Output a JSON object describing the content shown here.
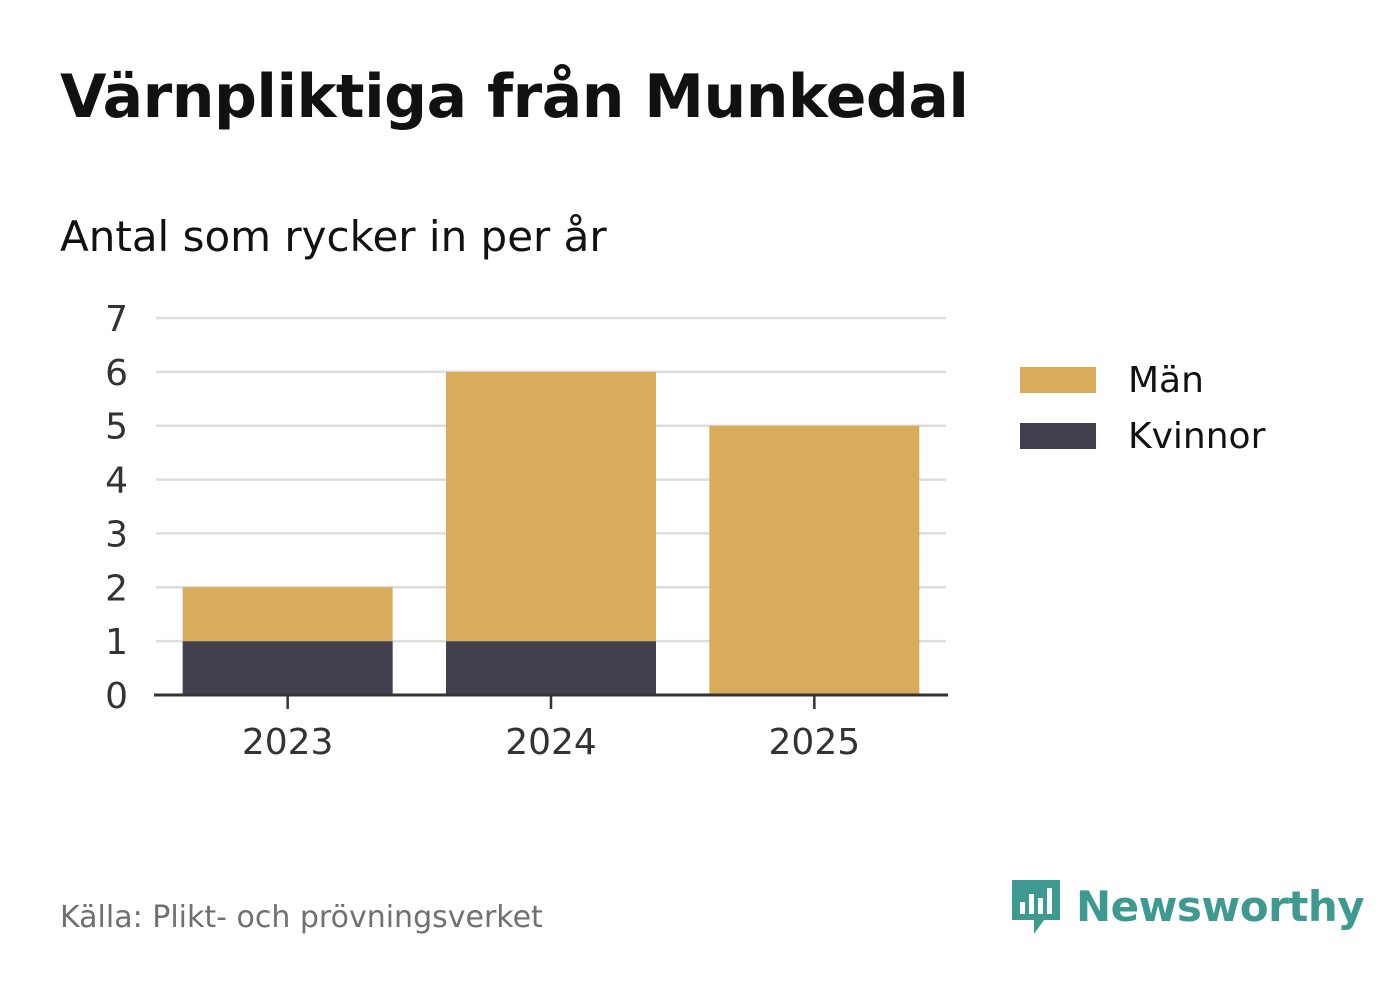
{
  "header": {
    "title": "Värnpliktiga från Munkedal",
    "subtitle": "Antal som rycker in per år"
  },
  "chart_data": {
    "type": "bar",
    "stacked": true,
    "categories": [
      "2023",
      "2024",
      "2025"
    ],
    "series": [
      {
        "name": "Kvinnor",
        "values": [
          1,
          1,
          0
        ],
        "color": "#42404f"
      },
      {
        "name": "Män",
        "values": [
          1,
          5,
          5
        ],
        "color": "#d9ac5b"
      }
    ],
    "yticks": [
      0,
      1,
      2,
      3,
      4,
      5,
      6,
      7
    ],
    "ylim": [
      0,
      7
    ],
    "grid": true,
    "legend_position": "right",
    "xlabel": "",
    "ylabel": ""
  },
  "legend": {
    "items": [
      {
        "label": "Män",
        "color": "#d9ac5b"
      },
      {
        "label": "Kvinnor",
        "color": "#42404f"
      }
    ]
  },
  "footer": {
    "source": "Källa: Plikt- och prövningsverket",
    "brand": "Newsworthy",
    "brand_icon": "newsworthy-logo-icon",
    "brand_color": "#3e9a91"
  }
}
